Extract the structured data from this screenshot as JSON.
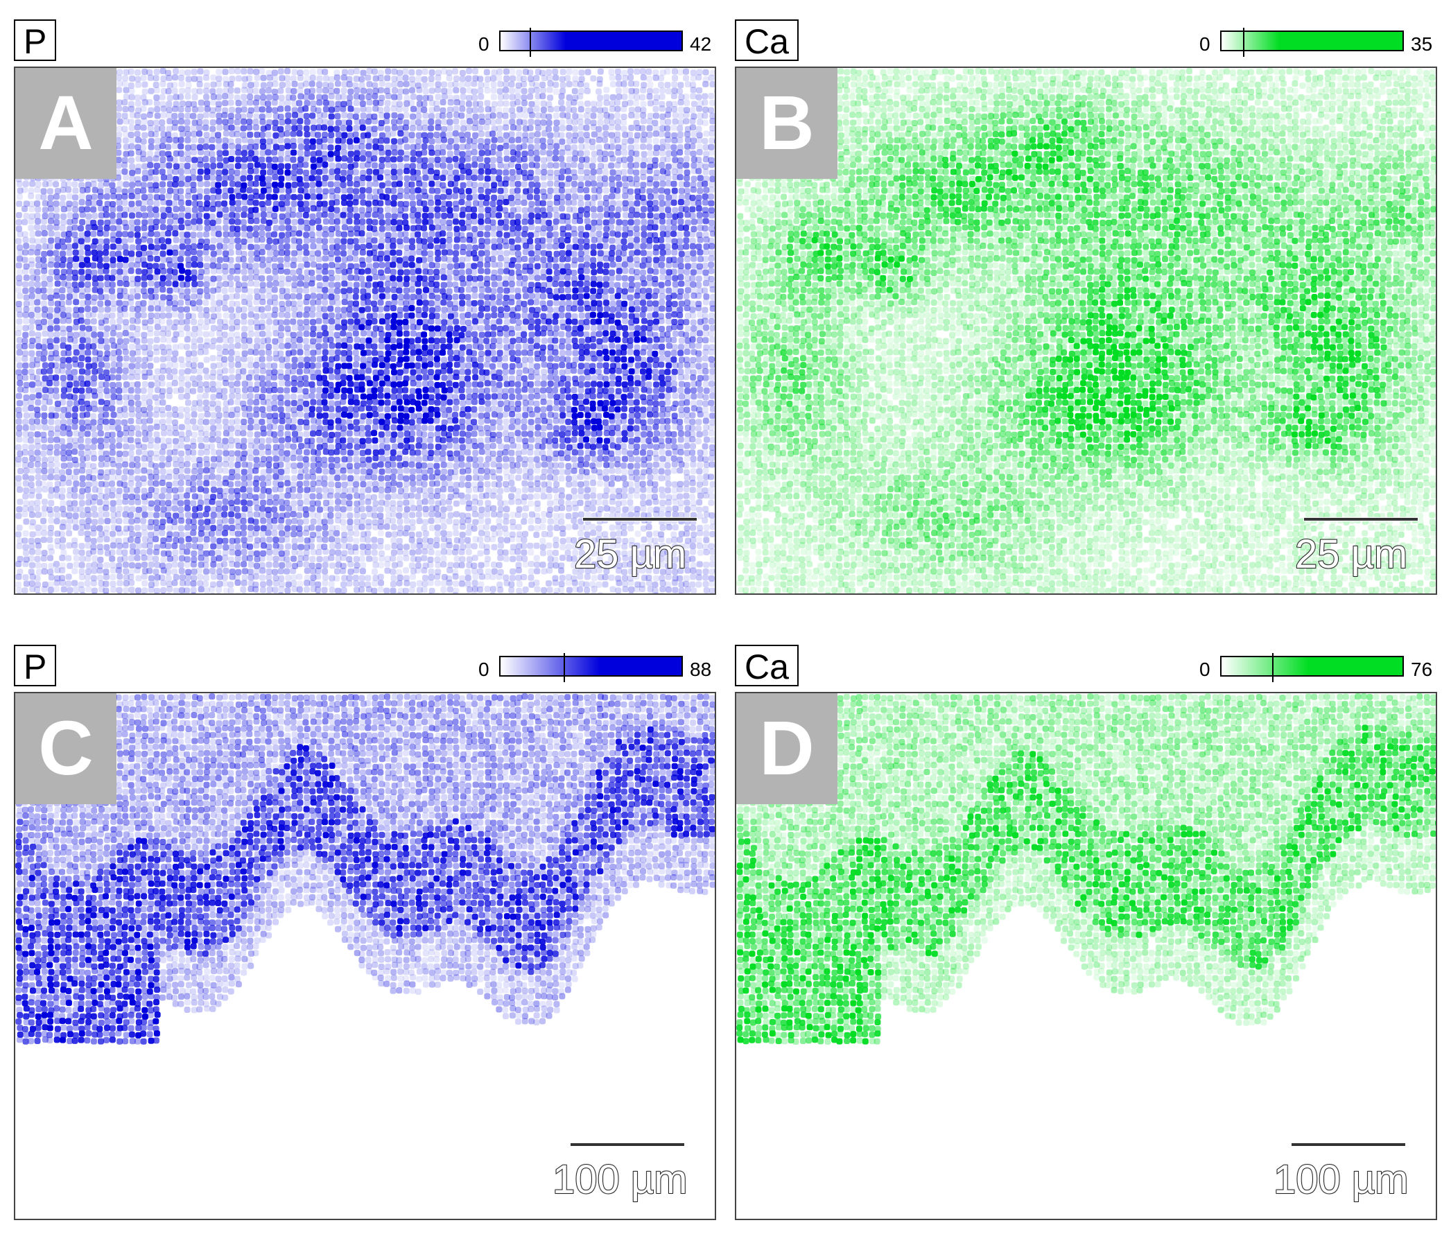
{
  "panels": [
    {
      "letter": "A",
      "element": "P K",
      "scale_min": "0",
      "scale_max": "42",
      "scalebar": "25 µm",
      "color": "#0000dd",
      "tick_fraction": 0.16,
      "pattern": "cells"
    },
    {
      "letter": "B",
      "element": "Ca K",
      "scale_min": "0",
      "scale_max": "35",
      "scalebar": "25 µm",
      "color": "#00dd22",
      "tick_fraction": 0.12,
      "pattern": "cells"
    },
    {
      "letter": "C",
      "element": "P K",
      "scale_min": "0",
      "scale_max": "88",
      "scalebar": "100 µm",
      "color": "#0000dd",
      "tick_fraction": 0.35,
      "pattern": "front"
    },
    {
      "letter": "D",
      "element": "Ca K",
      "scale_min": "0",
      "scale_max": "76",
      "scalebar": "100 µm",
      "color": "#00dd22",
      "tick_fraction": 0.28,
      "pattern": "front"
    }
  ]
}
